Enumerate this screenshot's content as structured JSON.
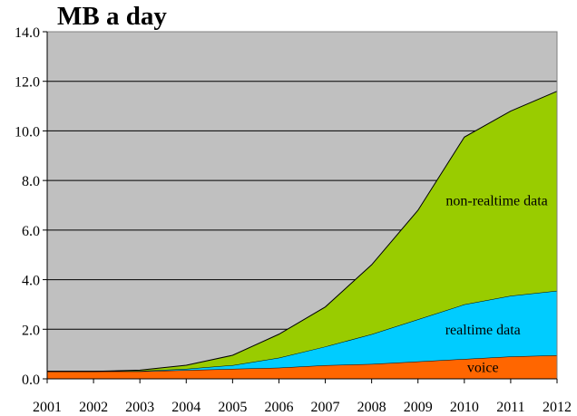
{
  "chart_data": {
    "type": "area",
    "stacked": true,
    "title": "MB a day",
    "xlabel": "",
    "ylabel": "",
    "x": [
      2001,
      2002,
      2003,
      2004,
      2005,
      2006,
      2007,
      2008,
      2009,
      2010,
      2011,
      2012
    ],
    "x_tick_labels": [
      "2001",
      "2002",
      "2003",
      "2004",
      "2005",
      "2006",
      "2007",
      "2008",
      "2009",
      "2010",
      "2011",
      "2012"
    ],
    "ylim": [
      0,
      14
    ],
    "y_ticks": [
      0,
      2,
      4,
      6,
      8,
      10,
      12,
      14
    ],
    "y_tick_labels": [
      "0.0",
      "2.0",
      "4.0",
      "6.0",
      "8.0",
      "10.0",
      "12.0",
      "14.0"
    ],
    "grid": "horizontal",
    "legend": "none",
    "background_color": "#c0c0c0",
    "series": [
      {
        "name": "voice",
        "color": "#ff6600",
        "values": [
          0.3,
          0.3,
          0.3,
          0.35,
          0.4,
          0.45,
          0.55,
          0.6,
          0.7,
          0.8,
          0.9,
          0.95
        ]
      },
      {
        "name": "realtime data",
        "color": "#00ccff",
        "values": [
          0.0,
          0.0,
          0.02,
          0.05,
          0.15,
          0.4,
          0.75,
          1.2,
          1.7,
          2.2,
          2.45,
          2.6
        ]
      },
      {
        "name": "non-realtime data",
        "color": "#99cc00",
        "values": [
          0.0,
          0.0,
          0.03,
          0.15,
          0.4,
          0.95,
          1.6,
          2.8,
          4.4,
          6.75,
          7.45,
          8.05
        ]
      }
    ]
  }
}
